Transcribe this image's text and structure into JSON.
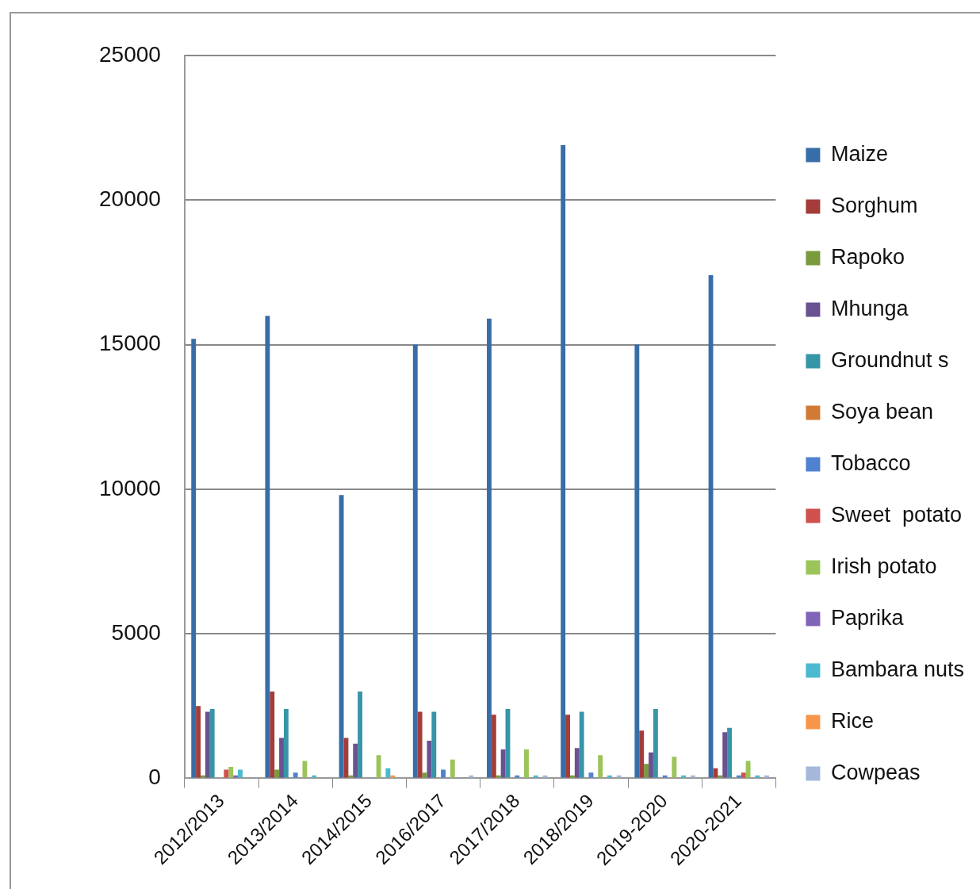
{
  "chart_data": {
    "type": "bar",
    "categories": [
      "2012/2013",
      "2013/2014",
      "2014/2015",
      "2016/2017",
      "2017/2018",
      "2018/2019",
      "2019-2020",
      "2020-2021"
    ],
    "series": [
      {
        "name": "Maize",
        "color": "#386ea7",
        "values": [
          15200,
          16000,
          9800,
          15000,
          15900,
          21900,
          15000,
          17400
        ]
      },
      {
        "name": "Sorghum",
        "color": "#a43d3a",
        "values": [
          2500,
          3000,
          1400,
          2300,
          2200,
          2200,
          1650,
          350
        ]
      },
      {
        "name": "Rapoko",
        "color": "#7a9a3e",
        "values": [
          100,
          300,
          100,
          200,
          100,
          100,
          500,
          100
        ]
      },
      {
        "name": "Mhunga",
        "color": "#6a5292",
        "values": [
          2300,
          1400,
          1200,
          1300,
          1000,
          1050,
          900,
          1600
        ]
      },
      {
        "name": "Groundnut s",
        "color": "#3795a8",
        "values": [
          2400,
          2400,
          3000,
          2300,
          2400,
          2300,
          2400,
          1750
        ]
      },
      {
        "name": "Soya bean",
        "color": "#d07a36",
        "values": [
          0,
          0,
          0,
          0,
          0,
          0,
          0,
          0
        ]
      },
      {
        "name": "Tobacco",
        "color": "#4f81d0",
        "values": [
          0,
          200,
          0,
          300,
          100,
          200,
          100,
          100
        ]
      },
      {
        "name": "Sweet  potato",
        "color": "#d0504d",
        "values": [
          300,
          0,
          0,
          0,
          0,
          0,
          0,
          200
        ]
      },
      {
        "name": "Irish potato",
        "color": "#9bc45a",
        "values": [
          400,
          600,
          800,
          650,
          1000,
          800,
          750,
          600
        ]
      },
      {
        "name": "Paprika",
        "color": "#8064b8",
        "values": [
          100,
          0,
          0,
          0,
          0,
          0,
          0,
          0
        ]
      },
      {
        "name": "Bambara nuts",
        "color": "#4bbad0",
        "values": [
          300,
          100,
          350,
          0,
          100,
          100,
          100,
          100
        ]
      },
      {
        "name": "Rice",
        "color": "#f7964a",
        "values": [
          0,
          0,
          100,
          0,
          0,
          0,
          0,
          0
        ]
      },
      {
        "name": "Cowpeas",
        "color": "#a5b8db",
        "values": [
          0,
          0,
          0,
          100,
          100,
          100,
          100,
          100
        ]
      }
    ],
    "ylim": [
      0,
      25000
    ],
    "yticks": [
      0,
      5000,
      10000,
      15000,
      20000,
      25000
    ],
    "grid": "y",
    "legend": "right"
  }
}
